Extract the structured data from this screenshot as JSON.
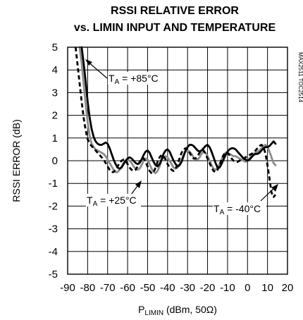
{
  "chart_data": {
    "type": "line",
    "title_line1": "RSSI RELATIVE ERROR",
    "title_line2": "vs. LIMIN INPUT AND TEMPERATURE",
    "xlabel_main": "P",
    "xlabel_sub": "LIMIN",
    "xlabel_rest": " (dBm, 50Ω)",
    "ylabel": "RSSI ERROR (dB)",
    "figure_id": "MAX2511 TOC2514",
    "xlim": [
      -90,
      20
    ],
    "ylim": [
      -5,
      5
    ],
    "x_ticks": [
      "-90",
      "-80",
      "-70",
      "-60",
      "-50",
      "-40",
      "-30",
      "-20",
      "-10",
      "0",
      "10",
      "20"
    ],
    "y_ticks": [
      "5",
      "4",
      "3",
      "2",
      "1",
      "0",
      "-1",
      "-2",
      "-3",
      "-4",
      "-5"
    ],
    "grid": true,
    "annotations": [
      {
        "prefix": "T",
        "sub": "A",
        "text": " = +85°C",
        "series": "T_A = +85°C"
      },
      {
        "prefix": "T",
        "sub": "A",
        "text": " = +25°C",
        "series": "T_A = +25°C"
      },
      {
        "prefix": "T",
        "sub": "A",
        "text": " = -40°C",
        "series": "T_A = -40°C"
      }
    ],
    "series": [
      {
        "name": "T_A = +85°C",
        "color": "#000000",
        "style": "solid",
        "x": [
          -83,
          -82,
          -81,
          -80,
          -79,
          -78,
          -77,
          -76,
          -75,
          -74,
          -73,
          -72,
          -71,
          -70,
          -69,
          -68,
          -67,
          -66,
          -65,
          -64,
          -63,
          -62,
          -61,
          -60,
          -59,
          -58,
          -57,
          -56,
          -55,
          -54,
          -53,
          -52,
          -51,
          -50,
          -49,
          -48,
          -47,
          -46,
          -45,
          -44,
          -43,
          -42,
          -41,
          -40,
          -39,
          -38,
          -37,
          -36,
          -35,
          -34,
          -33,
          -32,
          -31,
          -30,
          -29,
          -28,
          -27,
          -26,
          -25,
          -24,
          -23,
          -22,
          -21,
          -20,
          -19,
          -18,
          -17,
          -16,
          -15,
          -14,
          -13,
          -12,
          -11,
          -10,
          -9,
          -8,
          -7,
          -6,
          -5,
          -4,
          -3,
          -2,
          -1,
          0,
          1,
          2,
          3,
          4,
          5,
          6,
          7,
          8,
          9,
          10,
          11,
          12,
          13,
          14
        ],
        "y": [
          5.0,
          4.3,
          3.5,
          2.6,
          1.9,
          1.4,
          1.05,
          0.85,
          0.75,
          0.7,
          0.7,
          0.75,
          0.8,
          0.75,
          0.55,
          0.3,
          0.05,
          -0.15,
          -0.3,
          -0.35,
          -0.3,
          -0.15,
          0.0,
          0.1,
          0.15,
          0.1,
          0.0,
          -0.1,
          -0.15,
          -0.1,
          0.05,
          0.25,
          0.4,
          0.45,
          0.35,
          0.15,
          -0.05,
          -0.2,
          -0.25,
          -0.15,
          0.05,
          0.3,
          0.45,
          0.5,
          0.4,
          0.2,
          0.0,
          -0.15,
          -0.25,
          -0.2,
          -0.05,
          0.2,
          0.45,
          0.6,
          0.7,
          0.7,
          0.65,
          0.55,
          0.45,
          0.4,
          0.45,
          0.55,
          0.65,
          0.7,
          0.6,
          0.4,
          0.15,
          -0.1,
          -0.3,
          -0.3,
          -0.15,
          0.05,
          0.25,
          0.4,
          0.5,
          0.55,
          0.55,
          0.5,
          0.4,
          0.3,
          0.2,
          0.1,
          0.05,
          0.0,
          0.05,
          0.15,
          0.25,
          0.3,
          0.3,
          0.35,
          0.45,
          0.55,
          0.6,
          0.6,
          0.65,
          0.75,
          0.85,
          0.75
        ]
      },
      {
        "name": "T_A = +25°C",
        "color": "#8c8c8c",
        "style": "solid",
        "x": [
          -84,
          -83,
          -82,
          -81,
          -80,
          -79,
          -78,
          -77,
          -76,
          -75,
          -74,
          -73,
          -72,
          -71,
          -70,
          -69,
          -68,
          -67,
          -66,
          -65,
          -64,
          -63,
          -62,
          -61,
          -60,
          -59,
          -58,
          -57,
          -56,
          -55,
          -54,
          -53,
          -52,
          -51,
          -50,
          -49,
          -48,
          -47,
          -46,
          -45,
          -44,
          -43,
          -42,
          -41,
          -40,
          -39,
          -38,
          -37,
          -36,
          -35,
          -34,
          -33,
          -32,
          -31,
          -30,
          -29,
          -28,
          -27,
          -26,
          -25,
          -24,
          -23,
          -22,
          -21,
          -20,
          -19,
          -18,
          -17,
          -16,
          -15,
          -14,
          -13,
          -12,
          -11,
          -10,
          -9,
          -8,
          -7,
          -6,
          -5,
          -4,
          -3,
          -2,
          -1,
          0,
          1,
          2,
          3,
          4,
          5,
          6,
          7,
          8,
          9,
          10,
          11,
          12,
          13,
          14
        ],
        "y": [
          5.0,
          4.3,
          3.4,
          2.5,
          1.7,
          1.1,
          0.75,
          0.6,
          0.5,
          0.45,
          0.4,
          0.35,
          0.3,
          0.2,
          0.05,
          -0.1,
          -0.25,
          -0.4,
          -0.5,
          -0.5,
          -0.4,
          -0.25,
          -0.1,
          0.0,
          0.05,
          0.0,
          -0.1,
          -0.25,
          -0.35,
          -0.4,
          -0.35,
          -0.2,
          0.0,
          0.1,
          0.05,
          -0.15,
          -0.35,
          -0.5,
          -0.55,
          -0.45,
          -0.25,
          0.0,
          0.15,
          0.2,
          0.15,
          0.0,
          -0.15,
          -0.3,
          -0.35,
          -0.3,
          -0.15,
          0.05,
          0.25,
          0.4,
          0.45,
          0.4,
          0.3,
          0.15,
          0.05,
          0.05,
          0.15,
          0.3,
          0.4,
          0.35,
          0.2,
          0.0,
          -0.2,
          -0.35,
          -0.4,
          -0.3,
          -0.15,
          0.05,
          0.25,
          0.35,
          0.35,
          0.3,
          0.25,
          0.2,
          0.2,
          0.15,
          0.1,
          0.05,
          0.0,
          -0.05,
          0.0,
          0.1,
          0.2,
          0.3,
          0.35,
          0.4,
          0.45,
          0.55,
          0.65,
          0.7,
          0.6,
          0.4,
          0.15,
          -0.1,
          -0.2
        ]
      },
      {
        "name": "T_A = -40°C",
        "color": "#000000",
        "style": "dashed",
        "x": [
          -86,
          -85,
          -84,
          -83,
          -82,
          -81,
          -80,
          -79,
          -78,
          -77,
          -76,
          -75,
          -74,
          -73,
          -72,
          -71,
          -70,
          -69,
          -68,
          -67,
          -66,
          -65,
          -64,
          -63,
          -62,
          -61,
          -60,
          -59,
          -58,
          -57,
          -56,
          -55,
          -54,
          -53,
          -52,
          -51,
          -50,
          -49,
          -48,
          -47,
          -46,
          -45,
          -44,
          -43,
          -42,
          -41,
          -40,
          -39,
          -38,
          -37,
          -36,
          -35,
          -34,
          -33,
          -32,
          -31,
          -30,
          -29,
          -28,
          -27,
          -26,
          -25,
          -24,
          -23,
          -22,
          -21,
          -20,
          -19,
          -18,
          -17,
          -16,
          -15,
          -14,
          -13,
          -12,
          -11,
          -10,
          -9,
          -8,
          -7,
          -6,
          -5,
          -4,
          -3,
          -2,
          -1,
          0,
          1,
          2,
          3,
          4,
          5,
          6,
          7,
          8,
          9,
          10,
          11,
          12,
          13,
          14
        ],
        "y": [
          5.0,
          4.2,
          3.4,
          2.6,
          1.9,
          1.35,
          0.95,
          0.75,
          0.65,
          0.55,
          0.45,
          0.35,
          0.25,
          0.15,
          0.05,
          -0.1,
          -0.25,
          -0.4,
          -0.5,
          -0.5,
          -0.4,
          -0.25,
          -0.1,
          0.0,
          0.05,
          0.0,
          -0.15,
          -0.3,
          -0.4,
          -0.45,
          -0.4,
          -0.25,
          -0.05,
          0.1,
          0.1,
          -0.05,
          -0.25,
          -0.45,
          -0.55,
          -0.5,
          -0.3,
          -0.05,
          0.15,
          0.25,
          0.2,
          0.05,
          -0.15,
          -0.3,
          -0.4,
          -0.45,
          -0.35,
          -0.15,
          0.1,
          0.35,
          0.5,
          0.55,
          0.5,
          0.35,
          0.2,
          0.1,
          0.1,
          0.2,
          0.35,
          0.45,
          0.45,
          0.3,
          0.1,
          -0.1,
          -0.3,
          -0.45,
          -0.5,
          -0.4,
          -0.2,
          0.05,
          0.25,
          0.35,
          0.35,
          0.25,
          0.1,
          0.0,
          -0.05,
          -0.05,
          0.0,
          0.05,
          0.1,
          0.15,
          0.2,
          0.25,
          0.3,
          0.35,
          0.45,
          0.55,
          0.65,
          0.7,
          0.6,
          0.3,
          -0.2,
          -0.8,
          -1.4,
          -1.6,
          -1.5
        ]
      }
    ]
  }
}
